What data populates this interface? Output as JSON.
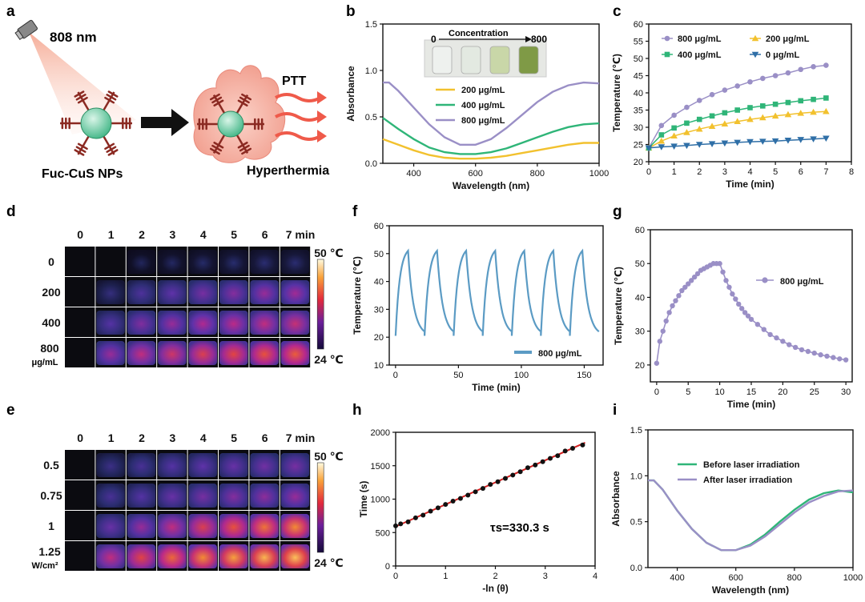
{
  "panel_labels": [
    "a",
    "b",
    "c",
    "d",
    "e",
    "f",
    "g",
    "h",
    "i"
  ],
  "schematic": {
    "laser": "808 nm",
    "np_label": "Fuc-CuS NPs",
    "ptt": "PTT",
    "hyper": "Hyperthermia"
  },
  "colors": {
    "c200": "#f2c12e",
    "c400": "#2fb578",
    "c800": "#9a8fc6",
    "c0": "#2f6fa7",
    "cycle": "#5b9bc4",
    "fit": "#d42020",
    "dots": "#111111"
  },
  "thermal_d": {
    "cols": [
      "0",
      "1",
      "2",
      "3",
      "4",
      "5",
      "6",
      "7 min"
    ],
    "rows": [
      "0",
      "200",
      "400"
    ],
    "row_last": "800",
    "row_last_unit": "μg/mL",
    "scale_max": "50 ℃",
    "scale_min": "24 ℃",
    "intensity": [
      [
        0,
        0,
        0.04,
        0.05,
        0.06,
        0.07,
        0.08,
        0.08
      ],
      [
        0,
        0.12,
        0.22,
        0.28,
        0.33,
        0.36,
        0.4,
        0.42
      ],
      [
        0,
        0.25,
        0.35,
        0.4,
        0.45,
        0.48,
        0.5,
        0.52
      ],
      [
        0,
        0.4,
        0.5,
        0.55,
        0.6,
        0.63,
        0.66,
        0.68
      ]
    ]
  },
  "thermal_e": {
    "cols": [
      "0",
      "1",
      "2",
      "3",
      "4",
      "5",
      "6",
      "7 min"
    ],
    "rows": [
      "0.5",
      "0.75",
      "1"
    ],
    "row_last": "1.25",
    "row_last_unit": "W/cm²",
    "scale_max": "50 ℃",
    "scale_min": "24 ℃",
    "intensity": [
      [
        0,
        0.15,
        0.2,
        0.25,
        0.28,
        0.3,
        0.32,
        0.33
      ],
      [
        0,
        0.2,
        0.25,
        0.3,
        0.33,
        0.36,
        0.38,
        0.4
      ],
      [
        0,
        0.3,
        0.4,
        0.5,
        0.6,
        0.66,
        0.72,
        0.76
      ],
      [
        0,
        0.5,
        0.62,
        0.7,
        0.76,
        0.8,
        0.84,
        0.86
      ]
    ]
  },
  "chart_data": [
    {
      "id": "b",
      "type": "line",
      "xlabel": "Wavelength (nm)",
      "ylabel": "Absorbance",
      "xlim": [
        300,
        1000
      ],
      "ylim": [
        0,
        1.5
      ],
      "xticks": [
        400,
        600,
        800,
        1000
      ],
      "yticks": [
        0.0,
        0.5,
        1.0,
        1.5
      ],
      "inset_title": "Concentration",
      "inset_from": "0",
      "inset_to": "800",
      "legend_pos": "center-right",
      "series": [
        {
          "name": "200 μg/mL",
          "color": "#f2c12e",
          "x": [
            300,
            350,
            400,
            450,
            500,
            550,
            600,
            650,
            700,
            750,
            800,
            850,
            900,
            950,
            1000
          ],
          "y": [
            0.26,
            0.2,
            0.14,
            0.09,
            0.06,
            0.05,
            0.05,
            0.06,
            0.08,
            0.11,
            0.14,
            0.17,
            0.2,
            0.22,
            0.22
          ]
        },
        {
          "name": "400 μg/mL",
          "color": "#2fb578",
          "x": [
            300,
            350,
            400,
            450,
            500,
            550,
            600,
            650,
            700,
            750,
            800,
            850,
            900,
            950,
            1000
          ],
          "y": [
            0.49,
            0.37,
            0.26,
            0.17,
            0.12,
            0.1,
            0.1,
            0.12,
            0.16,
            0.22,
            0.28,
            0.34,
            0.39,
            0.42,
            0.43
          ]
        },
        {
          "name": "800 μg/mL",
          "color": "#9a8fc6",
          "x": [
            300,
            320,
            350,
            400,
            450,
            500,
            550,
            600,
            650,
            700,
            750,
            800,
            850,
            900,
            950,
            1000
          ],
          "y": [
            0.87,
            0.87,
            0.78,
            0.6,
            0.42,
            0.28,
            0.2,
            0.2,
            0.26,
            0.38,
            0.52,
            0.66,
            0.77,
            0.84,
            0.87,
            0.86
          ]
        }
      ]
    },
    {
      "id": "c",
      "type": "line",
      "xlabel": "Time (min)",
      "ylabel": "Temperature (℃)",
      "xlim": [
        0,
        8
      ],
      "ylim": [
        20,
        60
      ],
      "xticks": [
        0,
        1,
        2,
        3,
        4,
        5,
        6,
        7,
        8
      ],
      "yticks": [
        20,
        25,
        30,
        35,
        40,
        45,
        50,
        55,
        60
      ],
      "legend_pos": "top",
      "series": [
        {
          "name": "800 μg/mL",
          "color": "#9a8fc6",
          "marker": "circle",
          "x": [
            0,
            0.5,
            1,
            1.5,
            2,
            2.5,
            3,
            3.5,
            4,
            4.5,
            5,
            5.5,
            6,
            6.5,
            7
          ],
          "y": [
            24,
            30.5,
            33.5,
            35.8,
            37.8,
            39.5,
            40.8,
            42,
            43.2,
            44.2,
            45,
            45.8,
            46.8,
            47.6,
            48
          ]
        },
        {
          "name": "200 μg/mL",
          "color": "#f2c12e",
          "marker": "triangle",
          "x": [
            0,
            0.5,
            1,
            1.5,
            2,
            2.5,
            3,
            3.5,
            4,
            4.5,
            5,
            5.5,
            6,
            6.5,
            7
          ],
          "y": [
            24,
            26,
            27.5,
            28.5,
            29.5,
            30.3,
            31,
            31.7,
            32.3,
            32.8,
            33.3,
            33.7,
            34.1,
            34.4,
            34.6
          ]
        },
        {
          "name": "400 μg/mL",
          "color": "#2fb578",
          "marker": "square",
          "x": [
            0,
            0.5,
            1,
            1.5,
            2,
            2.5,
            3,
            3.5,
            4,
            4.5,
            5,
            5.5,
            6,
            6.5,
            7
          ],
          "y": [
            24,
            27.8,
            29.8,
            31.2,
            32.3,
            33.3,
            34.2,
            35,
            35.7,
            36.2,
            36.7,
            37.2,
            37.7,
            38.1,
            38.5
          ]
        },
        {
          "name": "0 μg/mL",
          "color": "#2f6fa7",
          "marker": "tri-down",
          "x": [
            0,
            0.5,
            1,
            1.5,
            2,
            2.5,
            3,
            3.5,
            4,
            4.5,
            5,
            5.5,
            6,
            6.5,
            7
          ],
          "y": [
            24,
            24.3,
            24.5,
            24.7,
            25,
            25.2,
            25.4,
            25.6,
            25.8,
            25.9,
            26,
            26.2,
            26.4,
            26.6,
            26.8
          ]
        }
      ]
    },
    {
      "id": "f",
      "type": "line",
      "xlabel": "Time (min)",
      "ylabel": "Temperature (℃)",
      "xlim": [
        -5,
        165
      ],
      "ylim": [
        10,
        60
      ],
      "xticks": [
        0,
        50,
        100,
        150
      ],
      "yticks": [
        10,
        20,
        30,
        40,
        50,
        60
      ],
      "legend_pos": "bottom-right",
      "cycles": 7,
      "period": 23.1,
      "t_max": 51,
      "t_min": 20.5,
      "heat_frac": 0.43,
      "series": [
        {
          "name": "800 μg/mL",
          "color": "#5b9bc4"
        }
      ]
    },
    {
      "id": "g",
      "type": "line",
      "xlabel": "Time (min)",
      "ylabel": "Temperature (℃)",
      "xlim": [
        -1,
        31
      ],
      "ylim": [
        15,
        60
      ],
      "xticks": [
        0,
        5,
        10,
        15,
        20,
        25,
        30
      ],
      "yticks": [
        20,
        30,
        40,
        50,
        60
      ],
      "legend_pos": "right",
      "series": [
        {
          "name": "800 μg/mL",
          "color": "#9a8fc6",
          "marker": "circle",
          "x": [
            0,
            0.5,
            1,
            1.5,
            2,
            2.5,
            3,
            3.5,
            4,
            4.5,
            5,
            5.5,
            6,
            6.5,
            7,
            7.5,
            8,
            8.5,
            9,
            9.5,
            10,
            10.5,
            11,
            11.5,
            12,
            12.5,
            13,
            13.5,
            14,
            14.5,
            15,
            16,
            17,
            18,
            19,
            20,
            21,
            22,
            23,
            24,
            25,
            26,
            27,
            28,
            29,
            30
          ],
          "y": [
            20.5,
            27,
            30,
            33,
            35.5,
            37.5,
            39,
            40.5,
            42,
            43,
            44,
            45,
            46,
            47,
            48,
            48.5,
            49,
            49.5,
            50,
            50,
            50,
            47.5,
            45,
            43,
            41,
            39.5,
            38,
            36.7,
            35.5,
            34.5,
            33.5,
            32,
            30.5,
            29,
            28,
            27,
            26,
            25.2,
            24.5,
            24,
            23.5,
            23,
            22.6,
            22.2,
            21.8,
            21.5
          ]
        }
      ]
    },
    {
      "id": "h",
      "type": "scatter",
      "xlabel": "-ln (θ)",
      "ylabel": "Time (s)",
      "xlim": [
        0,
        4
      ],
      "ylim": [
        0,
        2000
      ],
      "xticks": [
        0,
        1,
        2,
        3,
        4
      ],
      "yticks": [
        0,
        500,
        1000,
        1500,
        2000
      ],
      "annotation": "τs=330.3 s",
      "fit": {
        "slope": 330.3,
        "intercept": 590
      },
      "x": [
        0,
        0.1,
        0.25,
        0.4,
        0.55,
        0.7,
        0.85,
        1.0,
        1.15,
        1.3,
        1.45,
        1.6,
        1.75,
        1.9,
        2.05,
        2.2,
        2.35,
        2.5,
        2.65,
        2.8,
        2.95,
        3.1,
        3.25,
        3.4,
        3.55,
        3.75
      ],
      "y": [
        600,
        630,
        660,
        720,
        760,
        820,
        870,
        920,
        970,
        1010,
        1060,
        1110,
        1160,
        1220,
        1260,
        1310,
        1360,
        1410,
        1470,
        1510,
        1560,
        1610,
        1650,
        1720,
        1760,
        1810
      ]
    },
    {
      "id": "i",
      "type": "line",
      "xlabel": "Wavelength (nm)",
      "ylabel": "Absorbance",
      "xlim": [
        300,
        1000
      ],
      "ylim": [
        0,
        1.5
      ],
      "xticks": [
        400,
        600,
        800,
        1000
      ],
      "yticks": [
        0.0,
        0.5,
        1.0,
        1.5
      ],
      "legend_pos": "top-right",
      "series": [
        {
          "name": "Before laser irradiation",
          "color": "#2fb578",
          "x": [
            300,
            320,
            350,
            400,
            450,
            500,
            550,
            600,
            650,
            700,
            750,
            800,
            850,
            900,
            950,
            1000
          ],
          "y": [
            0.95,
            0.95,
            0.85,
            0.62,
            0.42,
            0.27,
            0.19,
            0.19,
            0.25,
            0.36,
            0.5,
            0.63,
            0.74,
            0.81,
            0.84,
            0.82
          ]
        },
        {
          "name": "After laser irradiation",
          "color": "#9a8fc6",
          "x": [
            300,
            320,
            350,
            400,
            450,
            500,
            550,
            600,
            650,
            700,
            750,
            800,
            850,
            900,
            950,
            1000
          ],
          "y": [
            0.95,
            0.95,
            0.85,
            0.62,
            0.42,
            0.27,
            0.19,
            0.19,
            0.24,
            0.34,
            0.47,
            0.6,
            0.71,
            0.78,
            0.83,
            0.84
          ]
        }
      ]
    }
  ]
}
